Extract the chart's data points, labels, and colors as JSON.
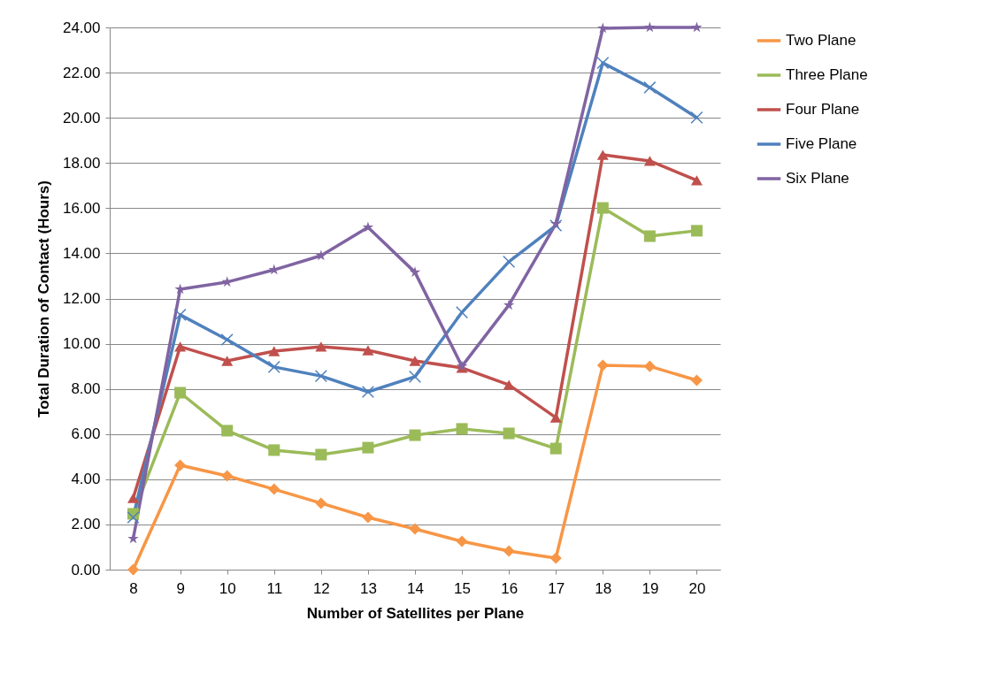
{
  "chart_data": {
    "type": "line",
    "xlabel": "Number of Satellites per Plane",
    "ylabel": "Total Duration of Contact (Hours)",
    "categories": [
      "8",
      "9",
      "10",
      "11",
      "12",
      "13",
      "14",
      "15",
      "16",
      "17",
      "18",
      "19",
      "20"
    ],
    "ylim": [
      0,
      24
    ],
    "yticks": [
      {
        "value": 0,
        "label": "0.00"
      },
      {
        "value": 2,
        "label": "2.00"
      },
      {
        "value": 4,
        "label": "4.00"
      },
      {
        "value": 6,
        "label": "6.00"
      },
      {
        "value": 8,
        "label": "8.00"
      },
      {
        "value": 10,
        "label": "10.00"
      },
      {
        "value": 12,
        "label": "12.00"
      },
      {
        "value": 14,
        "label": "14.00"
      },
      {
        "value": 16,
        "label": "16.00"
      },
      {
        "value": 18,
        "label": "18.00"
      },
      {
        "value": 20,
        "label": "20.00"
      },
      {
        "value": 22,
        "label": "22.00"
      },
      {
        "value": 24,
        "label": "24.00"
      }
    ],
    "grid": "y",
    "legend": "right",
    "line_style": "solid",
    "series": [
      {
        "name": "Two Plane",
        "color": "#f79646",
        "marker": "diamond",
        "values": [
          0,
          4.62,
          4.15,
          3.56,
          2.94,
          2.31,
          1.8,
          1.25,
          0.82,
          0.51,
          9.04,
          9.0,
          8.38
        ]
      },
      {
        "name": "Three Plane",
        "color": "#9bbb59",
        "marker": "square",
        "values": [
          2.47,
          7.83,
          6.15,
          5.29,
          5.09,
          5.4,
          5.95,
          6.23,
          6.03,
          5.36,
          16.01,
          14.76,
          15.0
        ]
      },
      {
        "name": "Four Plane",
        "color": "#c0504d",
        "marker": "triangle",
        "values": [
          3.17,
          9.87,
          9.24,
          9.67,
          9.87,
          9.71,
          9.24,
          8.93,
          8.18,
          6.73,
          18.36,
          18.09,
          17.23
        ]
      },
      {
        "name": "Five Plane",
        "color": "#4f81bd",
        "marker": "cross",
        "values": [
          2.31,
          11.28,
          10.18,
          8.97,
          8.57,
          7.87,
          8.54,
          11.39,
          13.63,
          15.23,
          22.43,
          21.34,
          20.01
        ]
      },
      {
        "name": "Six Plane",
        "color": "#8064a2",
        "marker": "star",
        "values": [
          1.37,
          12.41,
          12.73,
          13.27,
          13.9,
          15.15,
          13.16,
          9.0,
          11.71,
          15.31,
          23.96,
          24.0,
          24.0
        ]
      }
    ]
  }
}
